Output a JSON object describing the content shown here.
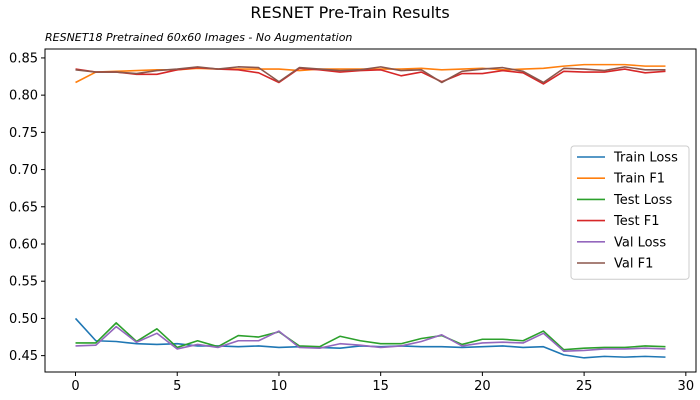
{
  "chart_data": {
    "type": "line",
    "title": "RESNET Pre-Train Results",
    "subtitle": "RESNET18 Pretrained 60x60 Images - No Augmentation",
    "xlabel": "",
    "ylabel": "",
    "xlim": [
      -1.5,
      30.5
    ],
    "ylim": [
      0.428,
      0.862
    ],
    "xticks": [
      0,
      5,
      10,
      15,
      20,
      25,
      30
    ],
    "yticks": [
      0.45,
      0.5,
      0.55,
      0.6,
      0.65,
      0.7,
      0.75,
      0.8,
      0.85
    ],
    "ytick_labels": [
      "0.45",
      "0.50",
      "0.55",
      "0.60",
      "0.65",
      "0.70",
      "0.75",
      "0.80",
      "0.85"
    ],
    "grid": false,
    "legend_position": "center-right",
    "x": [
      0,
      1,
      2,
      3,
      4,
      5,
      6,
      7,
      8,
      9,
      10,
      11,
      12,
      13,
      14,
      15,
      16,
      17,
      18,
      19,
      20,
      21,
      22,
      23,
      24,
      25,
      26,
      27,
      28,
      29
    ],
    "series": [
      {
        "name": "Train Loss",
        "color": "#1f77b4",
        "values": [
          0.5,
          0.47,
          0.469,
          0.466,
          0.465,
          0.466,
          0.463,
          0.463,
          0.462,
          0.463,
          0.461,
          0.462,
          0.461,
          0.46,
          0.463,
          0.462,
          0.463,
          0.462,
          0.462,
          0.461,
          0.462,
          0.463,
          0.461,
          0.462,
          0.451,
          0.447,
          0.449,
          0.448,
          0.449,
          0.448
        ]
      },
      {
        "name": "Train F1",
        "color": "#ff7f0e",
        "values": [
          0.817,
          0.831,
          0.832,
          0.833,
          0.834,
          0.834,
          0.836,
          0.835,
          0.835,
          0.835,
          0.835,
          0.833,
          0.835,
          0.835,
          0.835,
          0.835,
          0.835,
          0.836,
          0.834,
          0.835,
          0.836,
          0.834,
          0.835,
          0.836,
          0.839,
          0.841,
          0.841,
          0.841,
          0.839,
          0.839
        ]
      },
      {
        "name": "Test Loss",
        "color": "#2ca02c",
        "values": [
          0.467,
          0.467,
          0.494,
          0.469,
          0.486,
          0.461,
          0.47,
          0.462,
          0.477,
          0.475,
          0.482,
          0.463,
          0.462,
          0.476,
          0.47,
          0.466,
          0.466,
          0.473,
          0.477,
          0.465,
          0.472,
          0.472,
          0.47,
          0.483,
          0.458,
          0.46,
          0.461,
          0.461,
          0.463,
          0.462
        ]
      },
      {
        "name": "Test F1",
        "color": "#d62728",
        "values": [
          0.835,
          0.831,
          0.831,
          0.828,
          0.828,
          0.834,
          0.837,
          0.835,
          0.834,
          0.83,
          0.817,
          0.836,
          0.834,
          0.831,
          0.833,
          0.834,
          0.826,
          0.831,
          0.818,
          0.829,
          0.829,
          0.833,
          0.83,
          0.815,
          0.832,
          0.831,
          0.831,
          0.835,
          0.83,
          0.832
        ]
      },
      {
        "name": "Val Loss",
        "color": "#9467bd",
        "values": [
          0.463,
          0.464,
          0.489,
          0.468,
          0.48,
          0.459,
          0.465,
          0.461,
          0.47,
          0.47,
          0.483,
          0.461,
          0.46,
          0.466,
          0.464,
          0.461,
          0.463,
          0.469,
          0.478,
          0.463,
          0.467,
          0.468,
          0.467,
          0.48,
          0.456,
          0.457,
          0.459,
          0.459,
          0.46,
          0.459
        ]
      },
      {
        "name": "Val F1",
        "color": "#8c564b",
        "values": [
          0.834,
          0.831,
          0.831,
          0.829,
          0.833,
          0.835,
          0.838,
          0.835,
          0.838,
          0.837,
          0.818,
          0.837,
          0.835,
          0.833,
          0.834,
          0.838,
          0.833,
          0.834,
          0.817,
          0.832,
          0.835,
          0.837,
          0.832,
          0.817,
          0.836,
          0.835,
          0.833,
          0.838,
          0.834,
          0.834
        ]
      }
    ]
  }
}
